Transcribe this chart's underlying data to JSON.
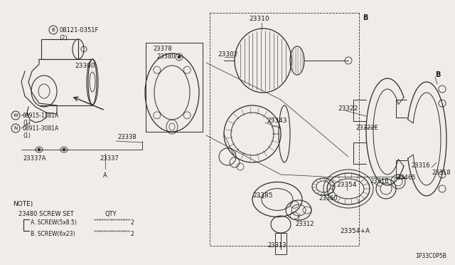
{
  "bg_color": "#f0ede8",
  "line_color": "#2a2a2a",
  "text_color": "#1a1a1a",
  "diagram_code": "1P33C0P5B",
  "parts_labels": {
    "B_screw": "B 08121-0351F\n(2)",
    "p23300": "23300",
    "W_label": "W 08915-1381A\n(1)",
    "N_label": "N 08911-3081A\n(1)",
    "p23378": "23378",
    "p23380": "23380",
    "p23302": "23302",
    "p23310": "23310",
    "p23338": "23338",
    "p23337": "23337",
    "p23337A": "23337A",
    "p23343": "23343",
    "p23322": "23322",
    "p23322E": "23322E",
    "p23316": "23316",
    "p23318": "23318",
    "p23465": "23465",
    "p23354": "23354",
    "p23360": "23360",
    "p23385": "23385",
    "p23312": "23312",
    "p23313": "23313",
    "p23354A": "23354+A"
  },
  "note_lines": [
    "NOTE)",
    "23480 SCREW SET                    QTY",
    "  A. SCREW(5x8.5)................. 2",
    "  B. SCREW(6x23) ................. 2"
  ]
}
